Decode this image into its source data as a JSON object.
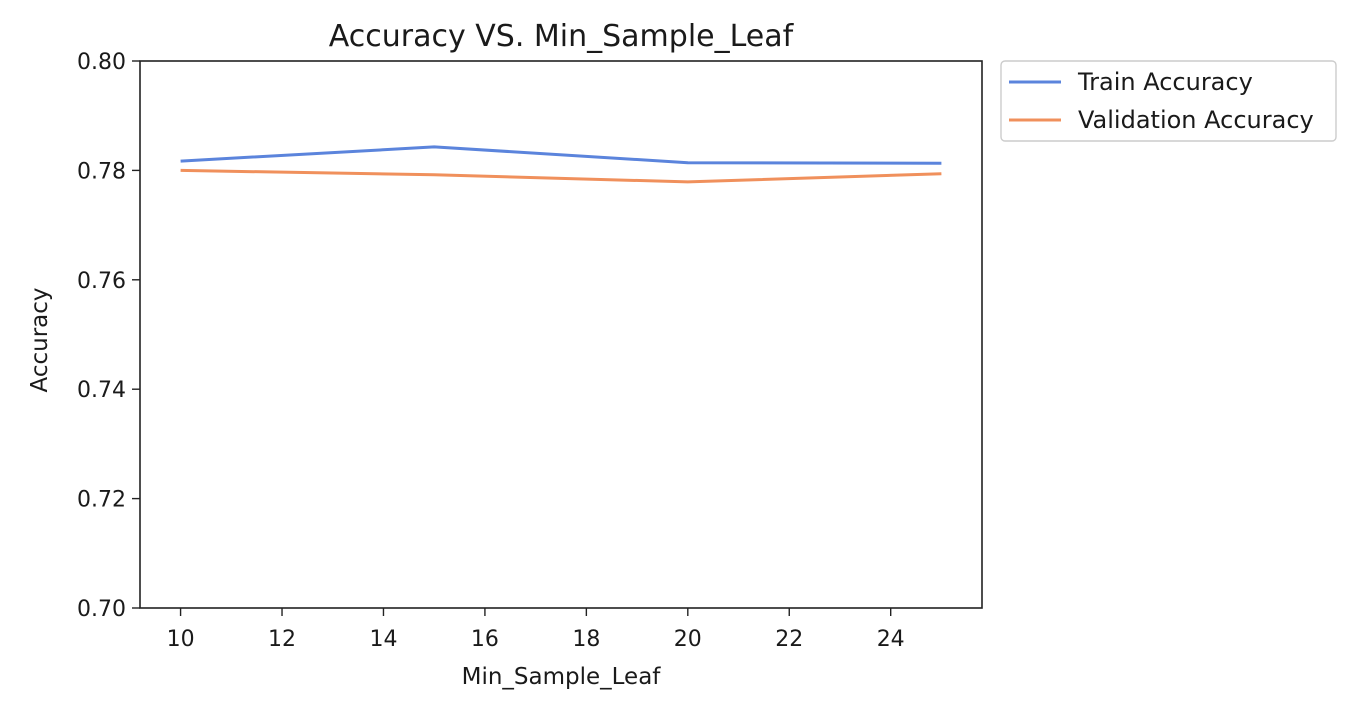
{
  "chart_data": {
    "type": "line",
    "title": "Accuracy VS. Min_Sample_Leaf",
    "xlabel": "Min_Sample_Leaf",
    "ylabel": "Accuracy",
    "x": [
      10,
      15,
      20,
      25
    ],
    "xlim": [
      9.2,
      25.8
    ],
    "ylim": [
      0.7,
      0.8
    ],
    "xticks": [
      10,
      12,
      14,
      16,
      18,
      20,
      22,
      24
    ],
    "yticks": [
      "0.70",
      "0.72",
      "0.74",
      "0.76",
      "0.78",
      "0.80"
    ],
    "grid": false,
    "legend_position": "outside-top-right",
    "series": [
      {
        "name": "Train Accuracy",
        "color": "#5b84dc",
        "values": [
          0.7817,
          0.7843,
          0.7814,
          0.7813
        ]
      },
      {
        "name": "Validation Accuracy",
        "color": "#f0905c",
        "values": [
          0.78,
          0.7792,
          0.7779,
          0.7794
        ]
      }
    ]
  }
}
